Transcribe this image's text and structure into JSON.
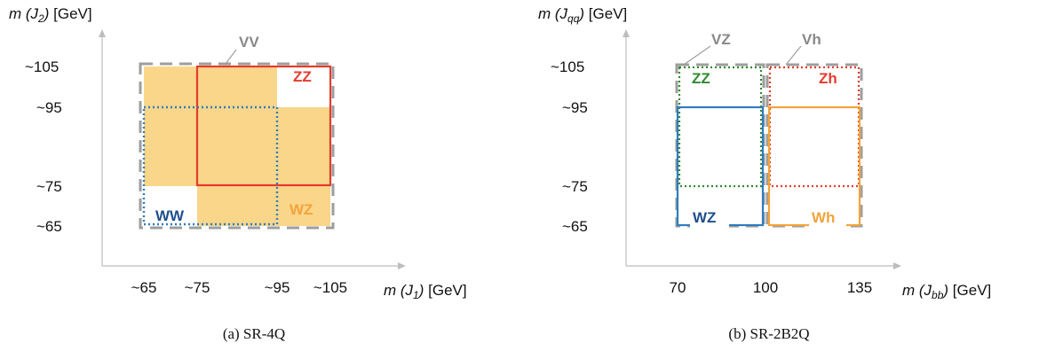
{
  "colors": {
    "fill": "#f9d68a",
    "dashed_gray": "#9e9e9e",
    "red": "#e53b2c",
    "blue": "#2f7cbf",
    "navy": "#1f4e8c",
    "green": "#2f8a2f",
    "orange": "#f4a33b",
    "axis": "#bdbdbd"
  },
  "panel_a": {
    "caption": "(a) SR-4Q",
    "y_axis_label": {
      "pre": "m (J",
      "sub": "2",
      "post": ") [GeV]"
    },
    "x_axis_label": {
      "pre": "m (J",
      "sub": "1",
      "post": ") [GeV]"
    },
    "y_ticks": [
      "~105",
      "~95",
      "~75",
      "~65"
    ],
    "x_ticks": [
      "~65",
      "~75",
      "~95",
      "~105"
    ],
    "regions": {
      "vv": "VV",
      "zz": "ZZ",
      "ww": "WW",
      "wz": "WZ"
    }
  },
  "panel_b": {
    "caption": "(b) SR-2B2Q",
    "y_axis_label": {
      "pre": "m (J",
      "sub": "qq",
      "post": ") [GeV]"
    },
    "x_axis_label": {
      "pre": "m (J",
      "sub": "bb",
      "post": ") [GeV]"
    },
    "y_ticks": [
      "~105",
      "~95",
      "~75",
      "~65"
    ],
    "x_ticks": [
      "70",
      "100",
      "135"
    ],
    "regions": {
      "vz": "VZ",
      "vh": "Vh",
      "zz": "ZZ",
      "zh": "Zh",
      "wz": "WZ",
      "wh": "Wh"
    }
  }
}
